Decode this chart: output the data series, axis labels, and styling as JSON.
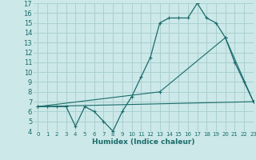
{
  "xlabel": "Humidex (Indice chaleur)",
  "bg_color": "#cce8e8",
  "grid_color": "#aad0d0",
  "line_color": "#1a6b6b",
  "ylim": [
    4,
    17
  ],
  "xlim": [
    -0.5,
    23
  ],
  "yticks": [
    4,
    5,
    6,
    7,
    8,
    9,
    10,
    11,
    12,
    13,
    14,
    15,
    16,
    17
  ],
  "xticks": [
    0,
    1,
    2,
    3,
    4,
    5,
    6,
    7,
    8,
    9,
    10,
    11,
    12,
    13,
    14,
    15,
    16,
    17,
    18,
    19,
    20,
    21,
    22,
    23
  ],
  "series1_x": [
    0,
    1,
    2,
    3,
    4,
    5,
    6,
    7,
    8,
    9,
    10,
    11,
    12,
    13,
    14,
    15,
    16,
    17,
    18,
    19,
    20,
    21,
    22,
    23
  ],
  "series1_y": [
    6.5,
    6.5,
    6.5,
    6.5,
    4.5,
    6.5,
    6.0,
    5.0,
    4.0,
    6.0,
    7.5,
    9.5,
    11.5,
    15.0,
    15.5,
    15.5,
    15.5,
    17.0,
    15.5,
    15.0,
    13.5,
    11.0,
    9.0,
    7.0
  ],
  "series2_x": [
    0,
    23
  ],
  "series2_y": [
    6.5,
    7.0
  ],
  "series3_x": [
    0,
    13,
    20,
    23
  ],
  "series3_y": [
    6.5,
    8.0,
    13.5,
    7.0
  ]
}
